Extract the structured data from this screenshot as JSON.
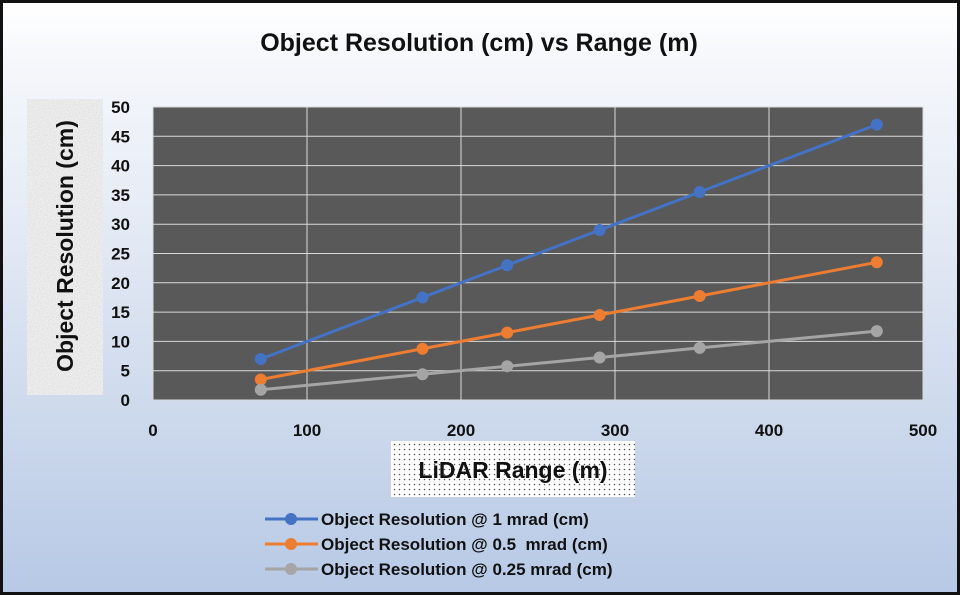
{
  "chart_data": {
    "type": "line",
    "title": "Object Resolution (cm) vs Range (m)",
    "xlabel": "LiDAR Range (m)",
    "ylabel": "Object Resolution (cm)",
    "xlim": [
      0,
      500
    ],
    "ylim": [
      0,
      50
    ],
    "x_ticks": [
      0,
      100,
      200,
      300,
      400,
      500
    ],
    "y_ticks": [
      0,
      5,
      10,
      15,
      20,
      25,
      30,
      35,
      40,
      45,
      50
    ],
    "grid": true,
    "legend_position": "bottom",
    "x": [
      70,
      175,
      230,
      290,
      355,
      470
    ],
    "series": [
      {
        "name": "Object Resolution @ 1 mrad (cm)",
        "color": "#4472c4",
        "values": [
          7.0,
          17.5,
          23.0,
          29.0,
          35.5,
          47.0
        ]
      },
      {
        "name": "Object Resolution @ 0.5  mrad (cm)",
        "color": "#ed7d31",
        "values": [
          3.5,
          8.75,
          11.5,
          14.5,
          17.75,
          23.5
        ]
      },
      {
        "name": "Object Resolution @ 0.25 mrad (cm)",
        "color": "#a5a5a5",
        "values": [
          1.75,
          4.4,
          5.75,
          7.25,
          8.9,
          11.75
        ]
      }
    ],
    "plot_background": "#595959",
    "grid_color": "#d9d9d9"
  }
}
